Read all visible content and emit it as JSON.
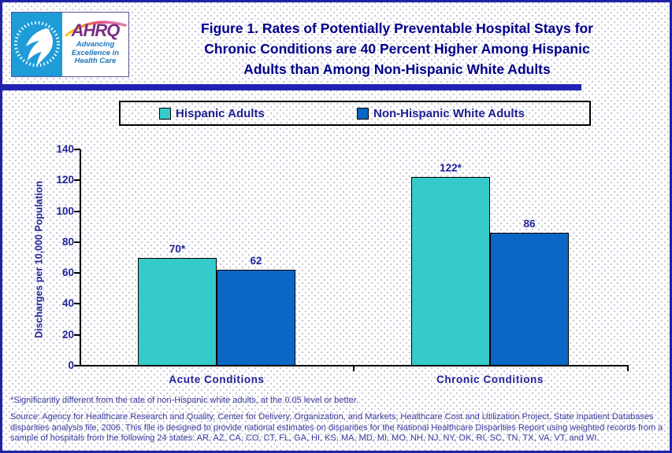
{
  "header": {
    "logo": {
      "hhs_seal_icon": "hhs-eagle-seal",
      "ahrq_acronym": "AHRQ",
      "tagline_lines": [
        "Advancing",
        "Excellence in",
        "Health Care"
      ]
    },
    "title_lines": [
      "Figure 1. Rates of Potentially Preventable Hospital Stays for",
      "Chronic Conditions are 40 Percent Higher Among Hispanic",
      "Adults than Among Non-Hispanic White Adults"
    ]
  },
  "chart_data": {
    "type": "bar",
    "title": "Figure 1. Rates of Potentially Preventable Hospital Stays for Chronic Conditions are 40 Percent Higher Among Hispanic Adults than Among Non-Hispanic White Adults",
    "categories": [
      "Acute Conditions",
      "Chronic Conditions"
    ],
    "series": [
      {
        "name": "Hispanic Adults",
        "color": "#35CBCB",
        "values": [
          70,
          122
        ],
        "value_labels": [
          "70*",
          "122*"
        ]
      },
      {
        "name": "Non-Hispanic White Adults",
        "color": "#0A67C5",
        "values": [
          62,
          86
        ],
        "value_labels": [
          "62",
          "86"
        ]
      }
    ],
    "xlabel": "",
    "ylabel": "Discharges per 10,000 Population",
    "ylim": [
      0,
      140
    ],
    "yticks": [
      0,
      20,
      40,
      60,
      80,
      100,
      120,
      140
    ],
    "grid": false,
    "legend_position": "top"
  },
  "footnote": "*Significantly different from the rate of non-Hispanic white adults, at the 0.05 level or better.",
  "source_lines": [
    "Source: Agency for Healthcare Research and Quality, Center for Delivery, Organization, and Markets, Healthcare Cost and Utilization Project, State Inpatient Databases",
    "disparities analysis file, 2006. This file is designed to provide national estimates on disparities for the National Healthcare Disparities Report using weighted records from a",
    "sample of hospitals from the following 24 states: AR, AZ, CA, CO, CT, FL, GA, HI, KS, MA, MD, MI, MO, NH, NJ, NY, OK, RI, SC, TN, TX, VA, VT, and WI."
  ],
  "colors": {
    "page_border": "#2121A8",
    "divider": "#2222B4",
    "title_text": "#00008B",
    "chart_text": "#22229A",
    "note_text": "#3A3A9E",
    "hispanic_teal": "#35CBCB",
    "non_hispanic_blue": "#0A67C5",
    "hhs_logo_bg": "#1E9CD8",
    "ahrq_purple": "#7B2E83",
    "ahrq_tagline_blue": "#1B75BB"
  }
}
